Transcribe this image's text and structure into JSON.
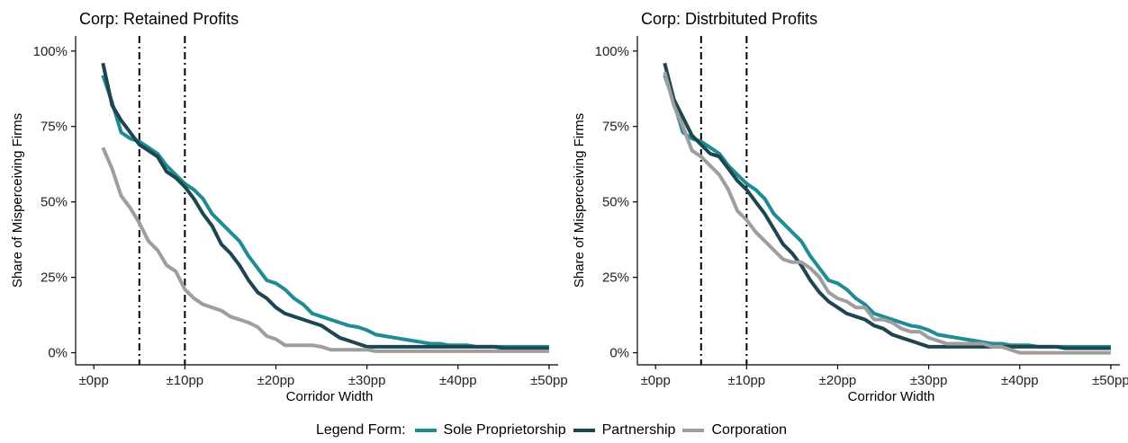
{
  "chart_data": [
    {
      "type": "line",
      "title": "Corp: Retained Profits",
      "xlabel": "Corridor Width",
      "ylabel": "Share of Misperceiving Firms",
      "xlim": [
        -2,
        51
      ],
      "ylim": [
        -0.04,
        1.05
      ],
      "xticks": [
        0,
        10,
        20,
        30,
        40,
        50
      ],
      "xtick_labels": [
        "±0pp",
        "±10pp",
        "±20pp",
        "±30pp",
        "±40pp",
        "±50pp"
      ],
      "yticks": [
        0,
        0.25,
        0.5,
        0.75,
        1.0
      ],
      "ytick_labels": [
        "0%",
        "25%",
        "50%",
        "75%",
        "100%"
      ],
      "vlines": [
        5,
        10
      ],
      "grid": false,
      "x": [
        1,
        2,
        3,
        4,
        5,
        6,
        7,
        8,
        9,
        10,
        11,
        12,
        13,
        14,
        15,
        16,
        17,
        18,
        19,
        20,
        21,
        22,
        23,
        24,
        25,
        26,
        27,
        28,
        29,
        30,
        31,
        32,
        33,
        34,
        35,
        36,
        37,
        38,
        39,
        40,
        41,
        42,
        43,
        44,
        45,
        46,
        47,
        48,
        49,
        50
      ],
      "series": [
        {
          "name": "Sole Proprietorship",
          "color": "#1f8c94",
          "values": [
            0.92,
            0.83,
            0.73,
            0.71,
            0.7,
            0.68,
            0.66,
            0.62,
            0.59,
            0.56,
            0.54,
            0.51,
            0.46,
            0.43,
            0.4,
            0.37,
            0.32,
            0.28,
            0.24,
            0.23,
            0.21,
            0.18,
            0.16,
            0.13,
            0.12,
            0.11,
            0.1,
            0.09,
            0.085,
            0.075,
            0.06,
            0.055,
            0.05,
            0.045,
            0.04,
            0.035,
            0.03,
            0.03,
            0.025,
            0.025,
            0.025,
            0.02,
            0.02,
            0.02,
            0.02,
            0.02,
            0.02,
            0.02,
            0.02,
            0.02
          ]
        },
        {
          "name": "Partnership",
          "color": "#1e4650",
          "values": [
            0.96,
            0.82,
            0.77,
            0.73,
            0.69,
            0.67,
            0.65,
            0.6,
            0.58,
            0.55,
            0.51,
            0.46,
            0.42,
            0.36,
            0.33,
            0.29,
            0.24,
            0.2,
            0.18,
            0.15,
            0.13,
            0.12,
            0.11,
            0.1,
            0.09,
            0.07,
            0.05,
            0.04,
            0.03,
            0.02,
            0.02,
            0.02,
            0.02,
            0.02,
            0.02,
            0.02,
            0.02,
            0.02,
            0.02,
            0.02,
            0.02,
            0.02,
            0.02,
            0.02,
            0.015,
            0.015,
            0.015,
            0.015,
            0.015,
            0.015
          ]
        },
        {
          "name": "Corporation",
          "color": "#9e9e9e",
          "values": [
            0.68,
            0.61,
            0.52,
            0.48,
            0.43,
            0.37,
            0.34,
            0.29,
            0.27,
            0.21,
            0.18,
            0.16,
            0.15,
            0.14,
            0.12,
            0.11,
            0.1,
            0.085,
            0.055,
            0.045,
            0.025,
            0.025,
            0.025,
            0.025,
            0.02,
            0.01,
            0.01,
            0.01,
            0.01,
            0.01,
            0.005,
            0.005,
            0.005,
            0.005,
            0.005,
            0.005,
            0.005,
            0.005,
            0.005,
            0.005,
            0.005,
            0.005,
            0.005,
            0.005,
            0.005,
            0.005,
            0.005,
            0.005,
            0.005,
            0.005
          ]
        }
      ]
    },
    {
      "type": "line",
      "title": "Corp: Distrbituted Profits",
      "xlabel": "Corridor Width",
      "ylabel": "Share of Misperceiving Firms",
      "xlim": [
        -2,
        51
      ],
      "ylim": [
        -0.04,
        1.05
      ],
      "xticks": [
        0,
        10,
        20,
        30,
        40,
        50
      ],
      "xtick_labels": [
        "±0pp",
        "±10pp",
        "±20pp",
        "±30pp",
        "±40pp",
        "±50pp"
      ],
      "yticks": [
        0,
        0.25,
        0.5,
        0.75,
        1.0
      ],
      "ytick_labels": [
        "0%",
        "25%",
        "50%",
        "75%",
        "100%"
      ],
      "vlines": [
        5,
        10
      ],
      "grid": false,
      "x": [
        1,
        2,
        3,
        4,
        5,
        6,
        7,
        8,
        9,
        10,
        11,
        12,
        13,
        14,
        15,
        16,
        17,
        18,
        19,
        20,
        21,
        22,
        23,
        24,
        25,
        26,
        27,
        28,
        29,
        30,
        31,
        32,
        33,
        34,
        35,
        36,
        37,
        38,
        39,
        40,
        41,
        42,
        43,
        44,
        45,
        46,
        47,
        48,
        49,
        50
      ],
      "series": [
        {
          "name": "Sole Proprietorship",
          "color": "#1f8c94",
          "values": [
            0.92,
            0.83,
            0.73,
            0.71,
            0.7,
            0.68,
            0.66,
            0.62,
            0.59,
            0.56,
            0.54,
            0.51,
            0.46,
            0.43,
            0.4,
            0.37,
            0.32,
            0.28,
            0.24,
            0.23,
            0.21,
            0.18,
            0.16,
            0.13,
            0.12,
            0.11,
            0.1,
            0.09,
            0.085,
            0.075,
            0.06,
            0.055,
            0.05,
            0.045,
            0.04,
            0.035,
            0.03,
            0.03,
            0.025,
            0.025,
            0.025,
            0.02,
            0.02,
            0.02,
            0.02,
            0.02,
            0.02,
            0.02,
            0.02,
            0.02
          ]
        },
        {
          "name": "Partnership",
          "color": "#1e4650",
          "values": [
            0.96,
            0.84,
            0.78,
            0.72,
            0.69,
            0.66,
            0.65,
            0.61,
            0.57,
            0.54,
            0.5,
            0.46,
            0.41,
            0.36,
            0.33,
            0.29,
            0.24,
            0.2,
            0.17,
            0.15,
            0.13,
            0.12,
            0.11,
            0.09,
            0.08,
            0.06,
            0.05,
            0.04,
            0.03,
            0.02,
            0.02,
            0.02,
            0.02,
            0.02,
            0.02,
            0.02,
            0.02,
            0.02,
            0.02,
            0.02,
            0.02,
            0.02,
            0.02,
            0.02,
            0.015,
            0.015,
            0.015,
            0.015,
            0.015,
            0.015
          ]
        },
        {
          "name": "Corporation",
          "color": "#9e9e9e",
          "values": [
            0.93,
            0.82,
            0.75,
            0.67,
            0.65,
            0.62,
            0.59,
            0.54,
            0.47,
            0.44,
            0.4,
            0.37,
            0.34,
            0.31,
            0.3,
            0.3,
            0.28,
            0.25,
            0.2,
            0.18,
            0.17,
            0.15,
            0.15,
            0.11,
            0.11,
            0.1,
            0.08,
            0.07,
            0.07,
            0.05,
            0.04,
            0.03,
            0.03,
            0.03,
            0.03,
            0.03,
            0.02,
            0.02,
            0.01,
            0.0,
            0.0,
            0.0,
            0.0,
            0.0,
            0.0,
            0.0,
            0.0,
            0.0,
            0.0,
            0.0
          ]
        }
      ]
    }
  ],
  "legend": {
    "title": "Legend Form:",
    "items": [
      {
        "label": "Sole Proprietorship",
        "color": "#1f8c94"
      },
      {
        "label": "Partnership",
        "color": "#1e4650"
      },
      {
        "label": "Corporation",
        "color": "#9e9e9e"
      }
    ]
  }
}
